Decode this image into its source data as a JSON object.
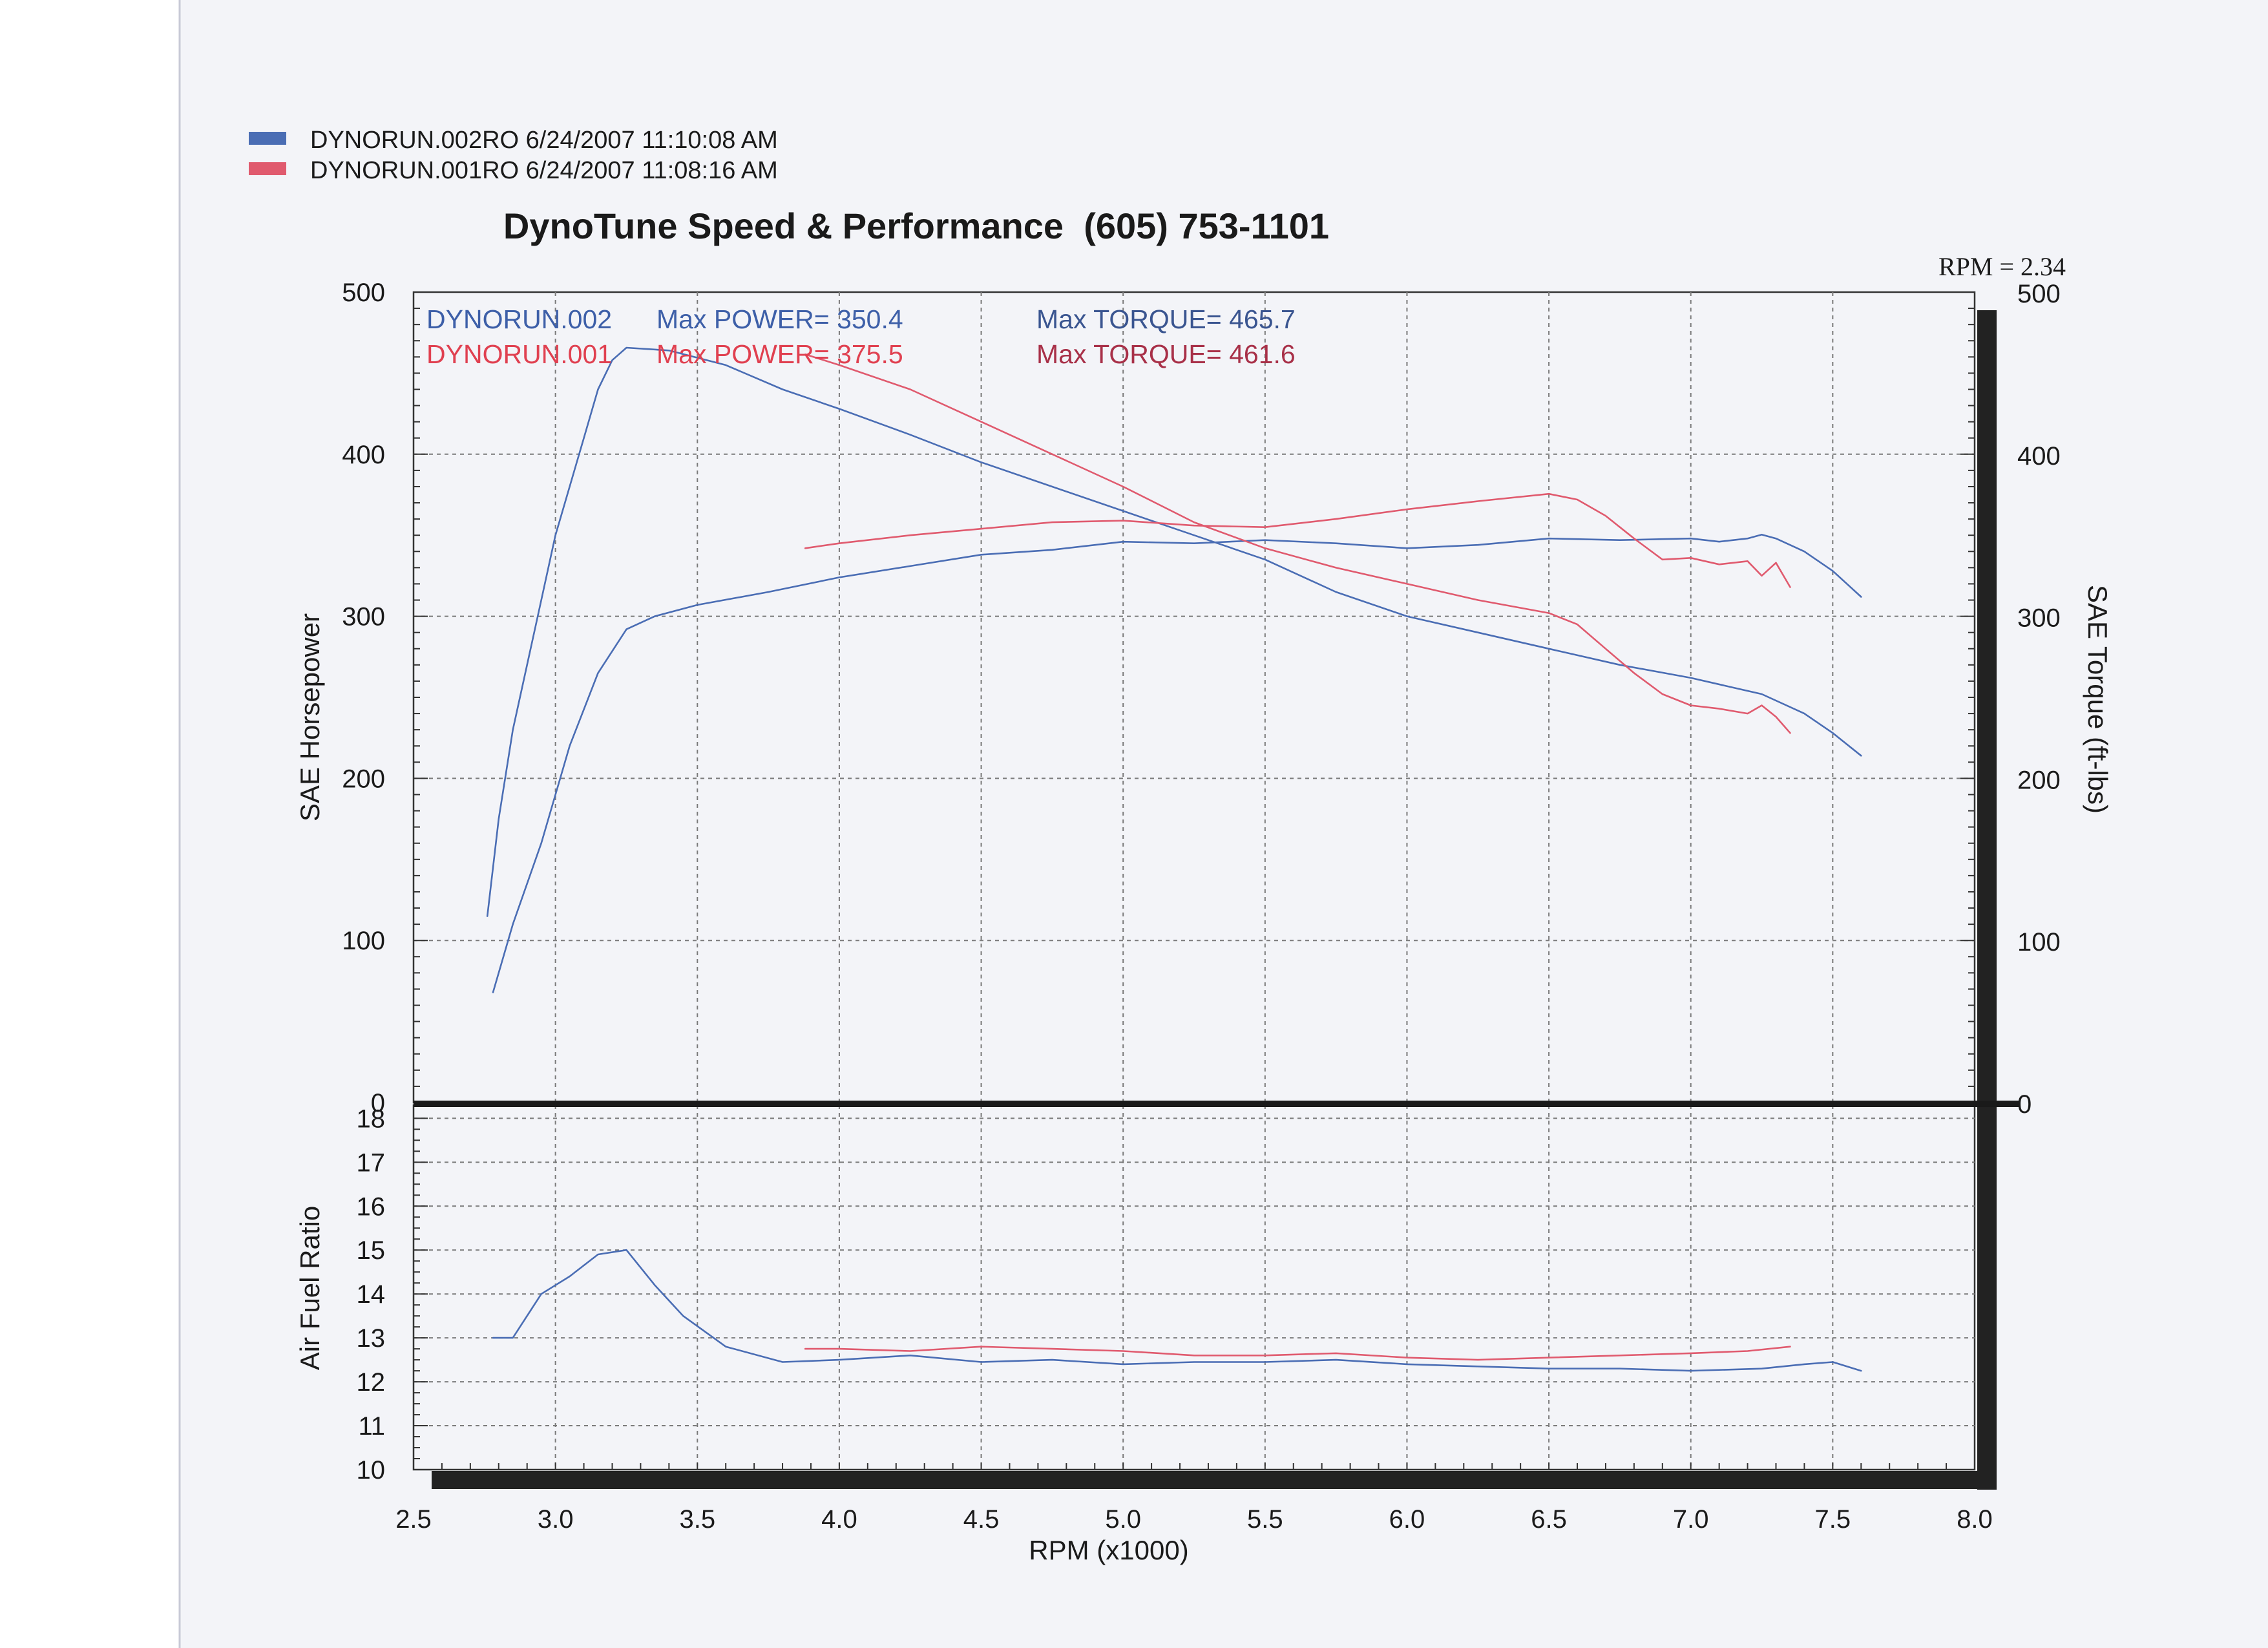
{
  "legend": [
    {
      "label": "DYNORUN.002RO  6/24/2007 11:10:08 AM",
      "color": "#4a6db4"
    },
    {
      "label": "DYNORUN.001RO  6/24/2007 11:08:16 AM",
      "color": "#e05a6e"
    }
  ],
  "title": "DynoTune Speed & Performance  (605) 753-1101",
  "rpm_ratio": "RPM = 2.34",
  "summary": [
    {
      "run": "DYNORUN.002",
      "power": "Max POWER= 350.4",
      "torque": "Max TORQUE= 465.7"
    },
    {
      "run": "DYNORUN.001",
      "power": "Max POWER= 375.5",
      "torque": "Max TORQUE= 461.6"
    }
  ],
  "colors": {
    "run002": "#4a6db4",
    "run002_text": "#3d5fa8",
    "run002_torque_text": "#3a5590",
    "run001": "#e05a6e",
    "run001_text": "#e04050",
    "run001_torque_text": "#a83048"
  },
  "chart_data": [
    {
      "type": "line",
      "xlabel": "RPM (x1000)",
      "ylabel": "SAE Horsepower",
      "y2label": "SAE Torque (ft-lbs)",
      "xlim": [
        2.5,
        8.0
      ],
      "ylim": [
        0,
        500
      ],
      "y2lim": [
        0,
        500
      ],
      "xticks": [
        "2.5",
        "3.0",
        "3.5",
        "4.0",
        "4.5",
        "5.0",
        "5.5",
        "6.0",
        "6.5",
        "7.0",
        "7.5",
        "8.0"
      ],
      "yticks": [
        "0",
        "100",
        "200",
        "300",
        "400",
        "500"
      ],
      "y2ticks": [
        "0",
        "100",
        "200",
        "300",
        "400",
        "500"
      ],
      "grid": true,
      "series": [
        {
          "name": "DYNORUN.002",
          "color": "#4a6db4",
          "points": [
            [
              2.78,
              68
            ],
            [
              2.85,
              110
            ],
            [
              2.95,
              160
            ],
            [
              3.05,
              220
            ],
            [
              3.15,
              265
            ],
            [
              3.25,
              292
            ],
            [
              3.35,
              300
            ],
            [
              3.5,
              307
            ],
            [
              3.75,
              315
            ],
            [
              4.0,
              324
            ],
            [
              4.25,
              331
            ],
            [
              4.5,
              338
            ],
            [
              4.75,
              341
            ],
            [
              5.0,
              346
            ],
            [
              5.25,
              345
            ],
            [
              5.5,
              347
            ],
            [
              5.75,
              345
            ],
            [
              6.0,
              342
            ],
            [
              6.25,
              344
            ],
            [
              6.5,
              348
            ],
            [
              6.75,
              347
            ],
            [
              7.0,
              348
            ],
            [
              7.1,
              346
            ],
            [
              7.2,
              348
            ],
            [
              7.25,
              350.4
            ],
            [
              7.3,
              348
            ],
            [
              7.4,
              340
            ],
            [
              7.5,
              328
            ],
            [
              7.55,
              320
            ],
            [
              7.6,
              312
            ]
          ]
        },
        {
          "name": "DYNORUN.002",
          "color": "#4a6db4",
          "points": [
            [
              2.76,
              115
            ],
            [
              2.8,
              175
            ],
            [
              2.85,
              230
            ],
            [
              2.9,
              270
            ],
            [
              2.95,
              310
            ],
            [
              3.0,
              350
            ],
            [
              3.05,
              380
            ],
            [
              3.1,
              410
            ],
            [
              3.15,
              440
            ],
            [
              3.2,
              458
            ],
            [
              3.25,
              465.7
            ],
            [
              3.4,
              464
            ],
            [
              3.6,
              455
            ],
            [
              3.8,
              440
            ],
            [
              4.0,
              428
            ],
            [
              4.25,
              412
            ],
            [
              4.5,
              395
            ],
            [
              4.75,
              380
            ],
            [
              5.0,
              365
            ],
            [
              5.25,
              350
            ],
            [
              5.5,
              335
            ],
            [
              5.75,
              315
            ],
            [
              6.0,
              300
            ],
            [
              6.25,
              290
            ],
            [
              6.5,
              280
            ],
            [
              6.75,
              270
            ],
            [
              7.0,
              262
            ],
            [
              7.25,
              252
            ],
            [
              7.4,
              240
            ],
            [
              7.5,
              228
            ],
            [
              7.6,
              214
            ]
          ]
        },
        {
          "name": "DYNORUN.001",
          "color": "#e05a6e",
          "points": [
            [
              3.88,
              342
            ],
            [
              4.0,
              345
            ],
            [
              4.25,
              350
            ],
            [
              4.5,
              354
            ],
            [
              4.75,
              358
            ],
            [
              5.0,
              359
            ],
            [
              5.25,
              356
            ],
            [
              5.5,
              355
            ],
            [
              5.75,
              360
            ],
            [
              6.0,
              366
            ],
            [
              6.25,
              371
            ],
            [
              6.5,
              375.5
            ],
            [
              6.6,
              372
            ],
            [
              6.7,
              362
            ],
            [
              6.8,
              348
            ],
            [
              6.9,
              335
            ],
            [
              7.0,
              336
            ],
            [
              7.1,
              332
            ],
            [
              7.2,
              334
            ],
            [
              7.25,
              325
            ],
            [
              7.3,
              333
            ],
            [
              7.35,
              318
            ]
          ]
        },
        {
          "name": "DYNORUN.001",
          "color": "#e05a6e",
          "points": [
            [
              3.88,
              461.6
            ],
            [
              4.0,
              455
            ],
            [
              4.25,
              440
            ],
            [
              4.5,
              420
            ],
            [
              4.75,
              400
            ],
            [
              5.0,
              380
            ],
            [
              5.25,
              358
            ],
            [
              5.5,
              342
            ],
            [
              5.75,
              330
            ],
            [
              6.0,
              320
            ],
            [
              6.25,
              310
            ],
            [
              6.5,
              302
            ],
            [
              6.6,
              295
            ],
            [
              6.7,
              280
            ],
            [
              6.8,
              265
            ],
            [
              6.9,
              252
            ],
            [
              7.0,
              245
            ],
            [
              7.1,
              243
            ],
            [
              7.2,
              240
            ],
            [
              7.25,
              245
            ],
            [
              7.3,
              238
            ],
            [
              7.35,
              228
            ]
          ]
        }
      ]
    },
    {
      "type": "line",
      "xlabel": "RPM (x1000)",
      "ylabel": "Air Fuel Ratio",
      "xlim": [
        2.5,
        8.0
      ],
      "ylim": [
        10,
        18
      ],
      "yticks": [
        "10",
        "11",
        "12",
        "13",
        "14",
        "15",
        "16",
        "17",
        "18"
      ],
      "grid": true,
      "series": [
        {
          "name": "DYNORUN.002",
          "color": "#4a6db4",
          "points": [
            [
              2.78,
              13.0
            ],
            [
              2.85,
              13.0
            ],
            [
              2.95,
              14.0
            ],
            [
              3.05,
              14.4
            ],
            [
              3.15,
              14.9
            ],
            [
              3.25,
              15.0
            ],
            [
              3.35,
              14.2
            ],
            [
              3.45,
              13.5
            ],
            [
              3.6,
              12.8
            ],
            [
              3.8,
              12.45
            ],
            [
              4.0,
              12.5
            ],
            [
              4.25,
              12.6
            ],
            [
              4.5,
              12.45
            ],
            [
              4.75,
              12.5
            ],
            [
              5.0,
              12.4
            ],
            [
              5.25,
              12.45
            ],
            [
              5.5,
              12.45
            ],
            [
              5.75,
              12.5
            ],
            [
              6.0,
              12.4
            ],
            [
              6.25,
              12.35
            ],
            [
              6.5,
              12.3
            ],
            [
              6.75,
              12.3
            ],
            [
              7.0,
              12.25
            ],
            [
              7.25,
              12.3
            ],
            [
              7.4,
              12.4
            ],
            [
              7.5,
              12.45
            ],
            [
              7.6,
              12.25
            ]
          ]
        },
        {
          "name": "DYNORUN.001",
          "color": "#e05a6e",
          "points": [
            [
              3.88,
              12.75
            ],
            [
              4.0,
              12.75
            ],
            [
              4.25,
              12.7
            ],
            [
              4.5,
              12.8
            ],
            [
              4.75,
              12.75
            ],
            [
              5.0,
              12.7
            ],
            [
              5.25,
              12.6
            ],
            [
              5.5,
              12.6
            ],
            [
              5.75,
              12.65
            ],
            [
              6.0,
              12.55
            ],
            [
              6.25,
              12.5
            ],
            [
              6.5,
              12.55
            ],
            [
              6.75,
              12.6
            ],
            [
              7.0,
              12.65
            ],
            [
              7.2,
              12.7
            ],
            [
              7.35,
              12.8
            ]
          ]
        }
      ]
    }
  ]
}
